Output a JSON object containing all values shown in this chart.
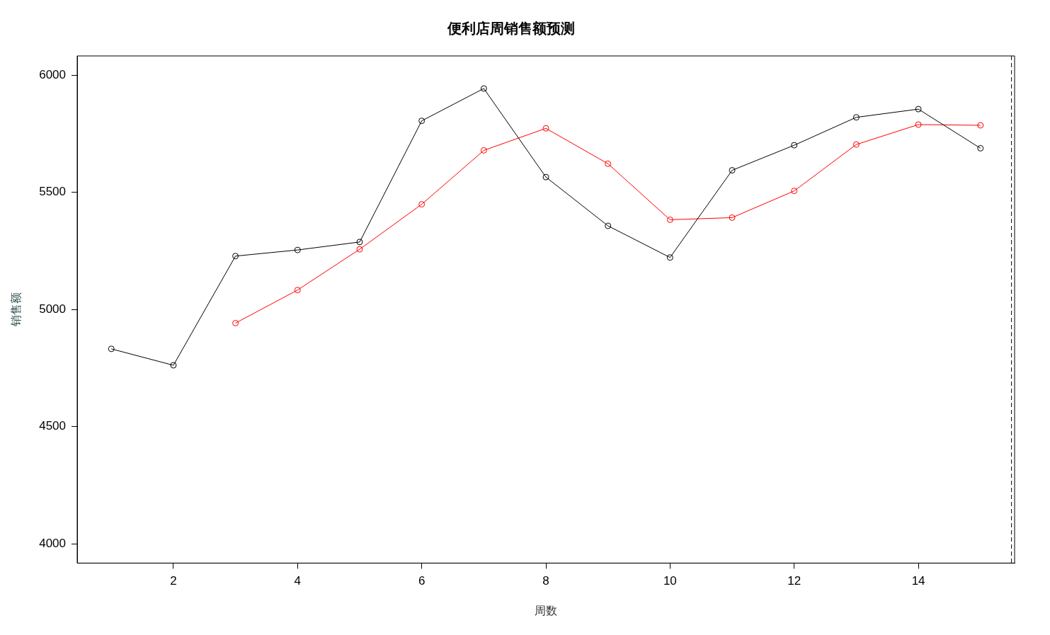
{
  "chart_data": {
    "type": "line",
    "title": "便利店周销售额预测",
    "xlabel": "周数",
    "ylabel": "销售额",
    "x": [
      1,
      2,
      3,
      4,
      5,
      6,
      7,
      8,
      9,
      10,
      11,
      12,
      13,
      14,
      15
    ],
    "series": [
      {
        "color": "#000000",
        "values": [
          4832,
          4762,
          5228,
          5254,
          5288,
          5805,
          5943,
          5565,
          5357,
          5222,
          5594,
          5701,
          5820,
          5855,
          5688
        ]
      },
      {
        "color": "#ff0000",
        "values": [
          null,
          null,
          4942,
          5083,
          5257,
          5449,
          5679,
          5773,
          5622,
          5383,
          5392,
          5506,
          5704,
          5789,
          5786
        ]
      }
    ],
    "xlim": [
      0.45,
      15.55
    ],
    "xticks": [
      2,
      4,
      6,
      8,
      10,
      12,
      14
    ],
    "ylim": [
      3918,
      6082
    ],
    "yticks": [
      4000,
      4500,
      5000,
      5500,
      6000
    ],
    "ref_lines": [
      {
        "axis": "x",
        "value": 15.5,
        "color": "#000000",
        "line_style": "dashed"
      }
    ],
    "grid": false,
    "legend": false,
    "marker": "circle",
    "line_style": "solid"
  }
}
